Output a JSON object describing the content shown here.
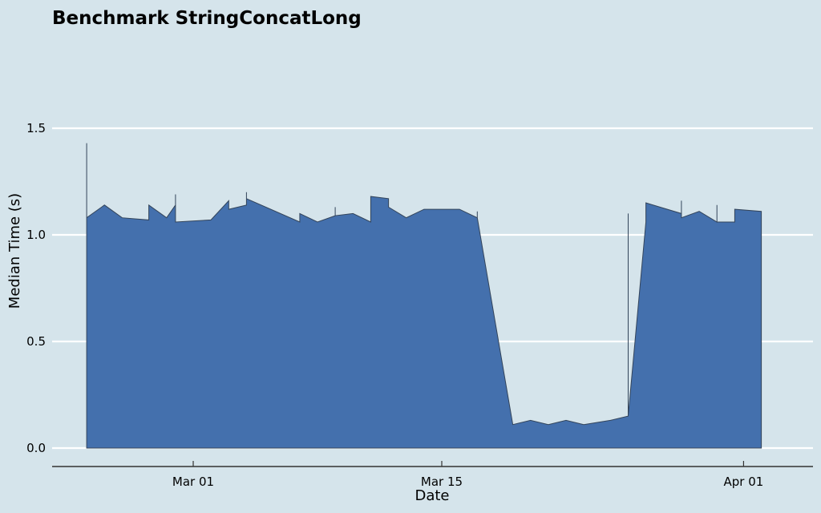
{
  "chart_data": {
    "type": "area",
    "title": "Benchmark StringConcatLong",
    "xlabel": "Date",
    "ylabel": "Median Time (s)",
    "ylim": [
      0,
      1.8
    ],
    "xlim": [
      "2023-02-21",
      "2023-04-04"
    ],
    "yticks": [
      0.0,
      0.5,
      1.0,
      1.5
    ],
    "ytick_labels": [
      "0.0",
      "0.5",
      "1.0",
      "1.5"
    ],
    "xticks": [
      "2023-03-01",
      "2023-03-15",
      "2023-04-01"
    ],
    "xtick_labels": [
      "Mar 01",
      "Mar 15",
      "Apr 01"
    ],
    "grid": "horizontal",
    "fill_color": "#4470ad",
    "edge_color": "#33445a",
    "background": "#d5e4eb",
    "x": [
      "2023-02-23T00:00",
      "2023-02-23T00:00",
      "2023-02-23T00:00",
      "2023-02-24T00:00",
      "2023-02-25T00:00",
      "2023-02-26T12:00",
      "2023-02-26T12:00",
      "2023-02-27T12:00",
      "2023-02-28T00:00",
      "2023-02-28T00:00",
      "2023-02-28T00:00",
      "2023-03-02T00:00",
      "2023-03-03T00:00",
      "2023-03-03T00:00",
      "2023-03-03T00:00",
      "2023-03-04T00:00",
      "2023-03-04T00:00",
      "2023-03-04T00:00",
      "2023-03-07T00:00",
      "2023-03-07T00:00",
      "2023-03-08T00:00",
      "2023-03-09T00:00",
      "2023-03-09T00:00",
      "2023-03-09T00:00",
      "2023-03-10T00:00",
      "2023-03-11T00:00",
      "2023-03-11T00:00",
      "2023-03-12T00:00",
      "2023-03-12T00:00",
      "2023-03-13T00:00",
      "2023-03-14T00:00",
      "2023-03-15T00:00",
      "2023-03-16T00:00",
      "2023-03-17T00:00",
      "2023-03-17T00:00",
      "2023-03-17T00:00",
      "2023-03-19T00:00",
      "2023-03-20T00:00",
      "2023-03-21T00:00",
      "2023-03-22T00:00",
      "2023-03-23T00:00",
      "2023-03-24T12:00",
      "2023-03-25T12:00",
      "2023-03-25T12:00",
      "2023-03-25T12:00",
      "2023-03-26T12:00",
      "2023-03-26T12:00",
      "2023-03-28T12:00",
      "2023-03-28T12:00",
      "2023-03-28T12:00",
      "2023-03-29T12:00",
      "2023-03-30T12:00",
      "2023-03-30T12:00",
      "2023-03-30T12:00",
      "2023-03-31T12:00",
      "2023-03-31T12:00",
      "2023-04-02T00:00"
    ],
    "y": [
      0.15,
      1.43,
      1.08,
      1.14,
      1.08,
      1.07,
      1.14,
      1.08,
      1.14,
      1.19,
      1.06,
      1.07,
      1.16,
      1.15,
      1.12,
      1.14,
      1.2,
      1.17,
      1.06,
      1.1,
      1.06,
      1.09,
      1.13,
      1.09,
      1.1,
      1.06,
      1.18,
      1.17,
      1.13,
      1.08,
      1.12,
      1.12,
      1.12,
      1.08,
      1.11,
      1.08,
      0.11,
      0.13,
      0.11,
      0.13,
      0.11,
      0.13,
      0.15,
      1.1,
      0.15,
      1.06,
      1.15,
      1.1,
      1.16,
      1.08,
      1.11,
      1.06,
      1.14,
      1.06,
      1.06,
      1.12,
      1.11
    ]
  }
}
